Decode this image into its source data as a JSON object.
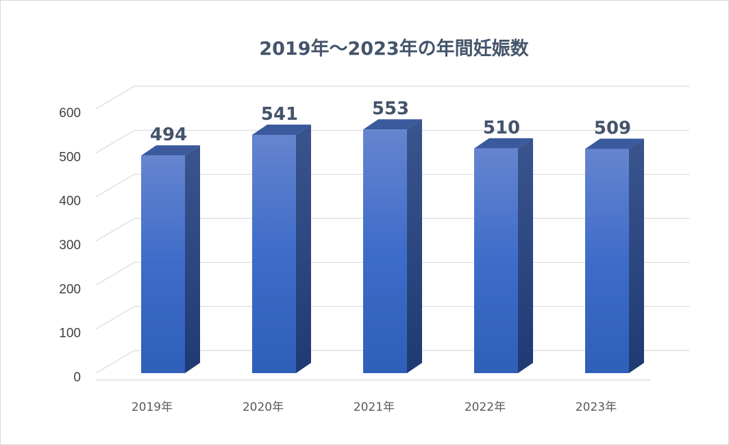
{
  "chart_data": {
    "type": "bar",
    "title": "2019年～2023年の年間妊娠数",
    "xlabel": "",
    "ylabel": "",
    "categories": [
      "2019年",
      "2020年",
      "2021年",
      "2022年",
      "2023年"
    ],
    "values": [
      494,
      541,
      553,
      510,
      509
    ],
    "ylim": [
      0,
      600
    ],
    "yticks": [
      "0",
      "100",
      "200",
      "300",
      "400",
      "500",
      "600"
    ],
    "data_labels": [
      "494",
      "541",
      "553",
      "510",
      "509"
    ],
    "grid": true,
    "legend": "none",
    "style": "3d-column",
    "colors": {
      "front": "#4472c4",
      "side": "#2f4f8f",
      "top": "#3b5a9e",
      "label": "#44546a"
    }
  }
}
